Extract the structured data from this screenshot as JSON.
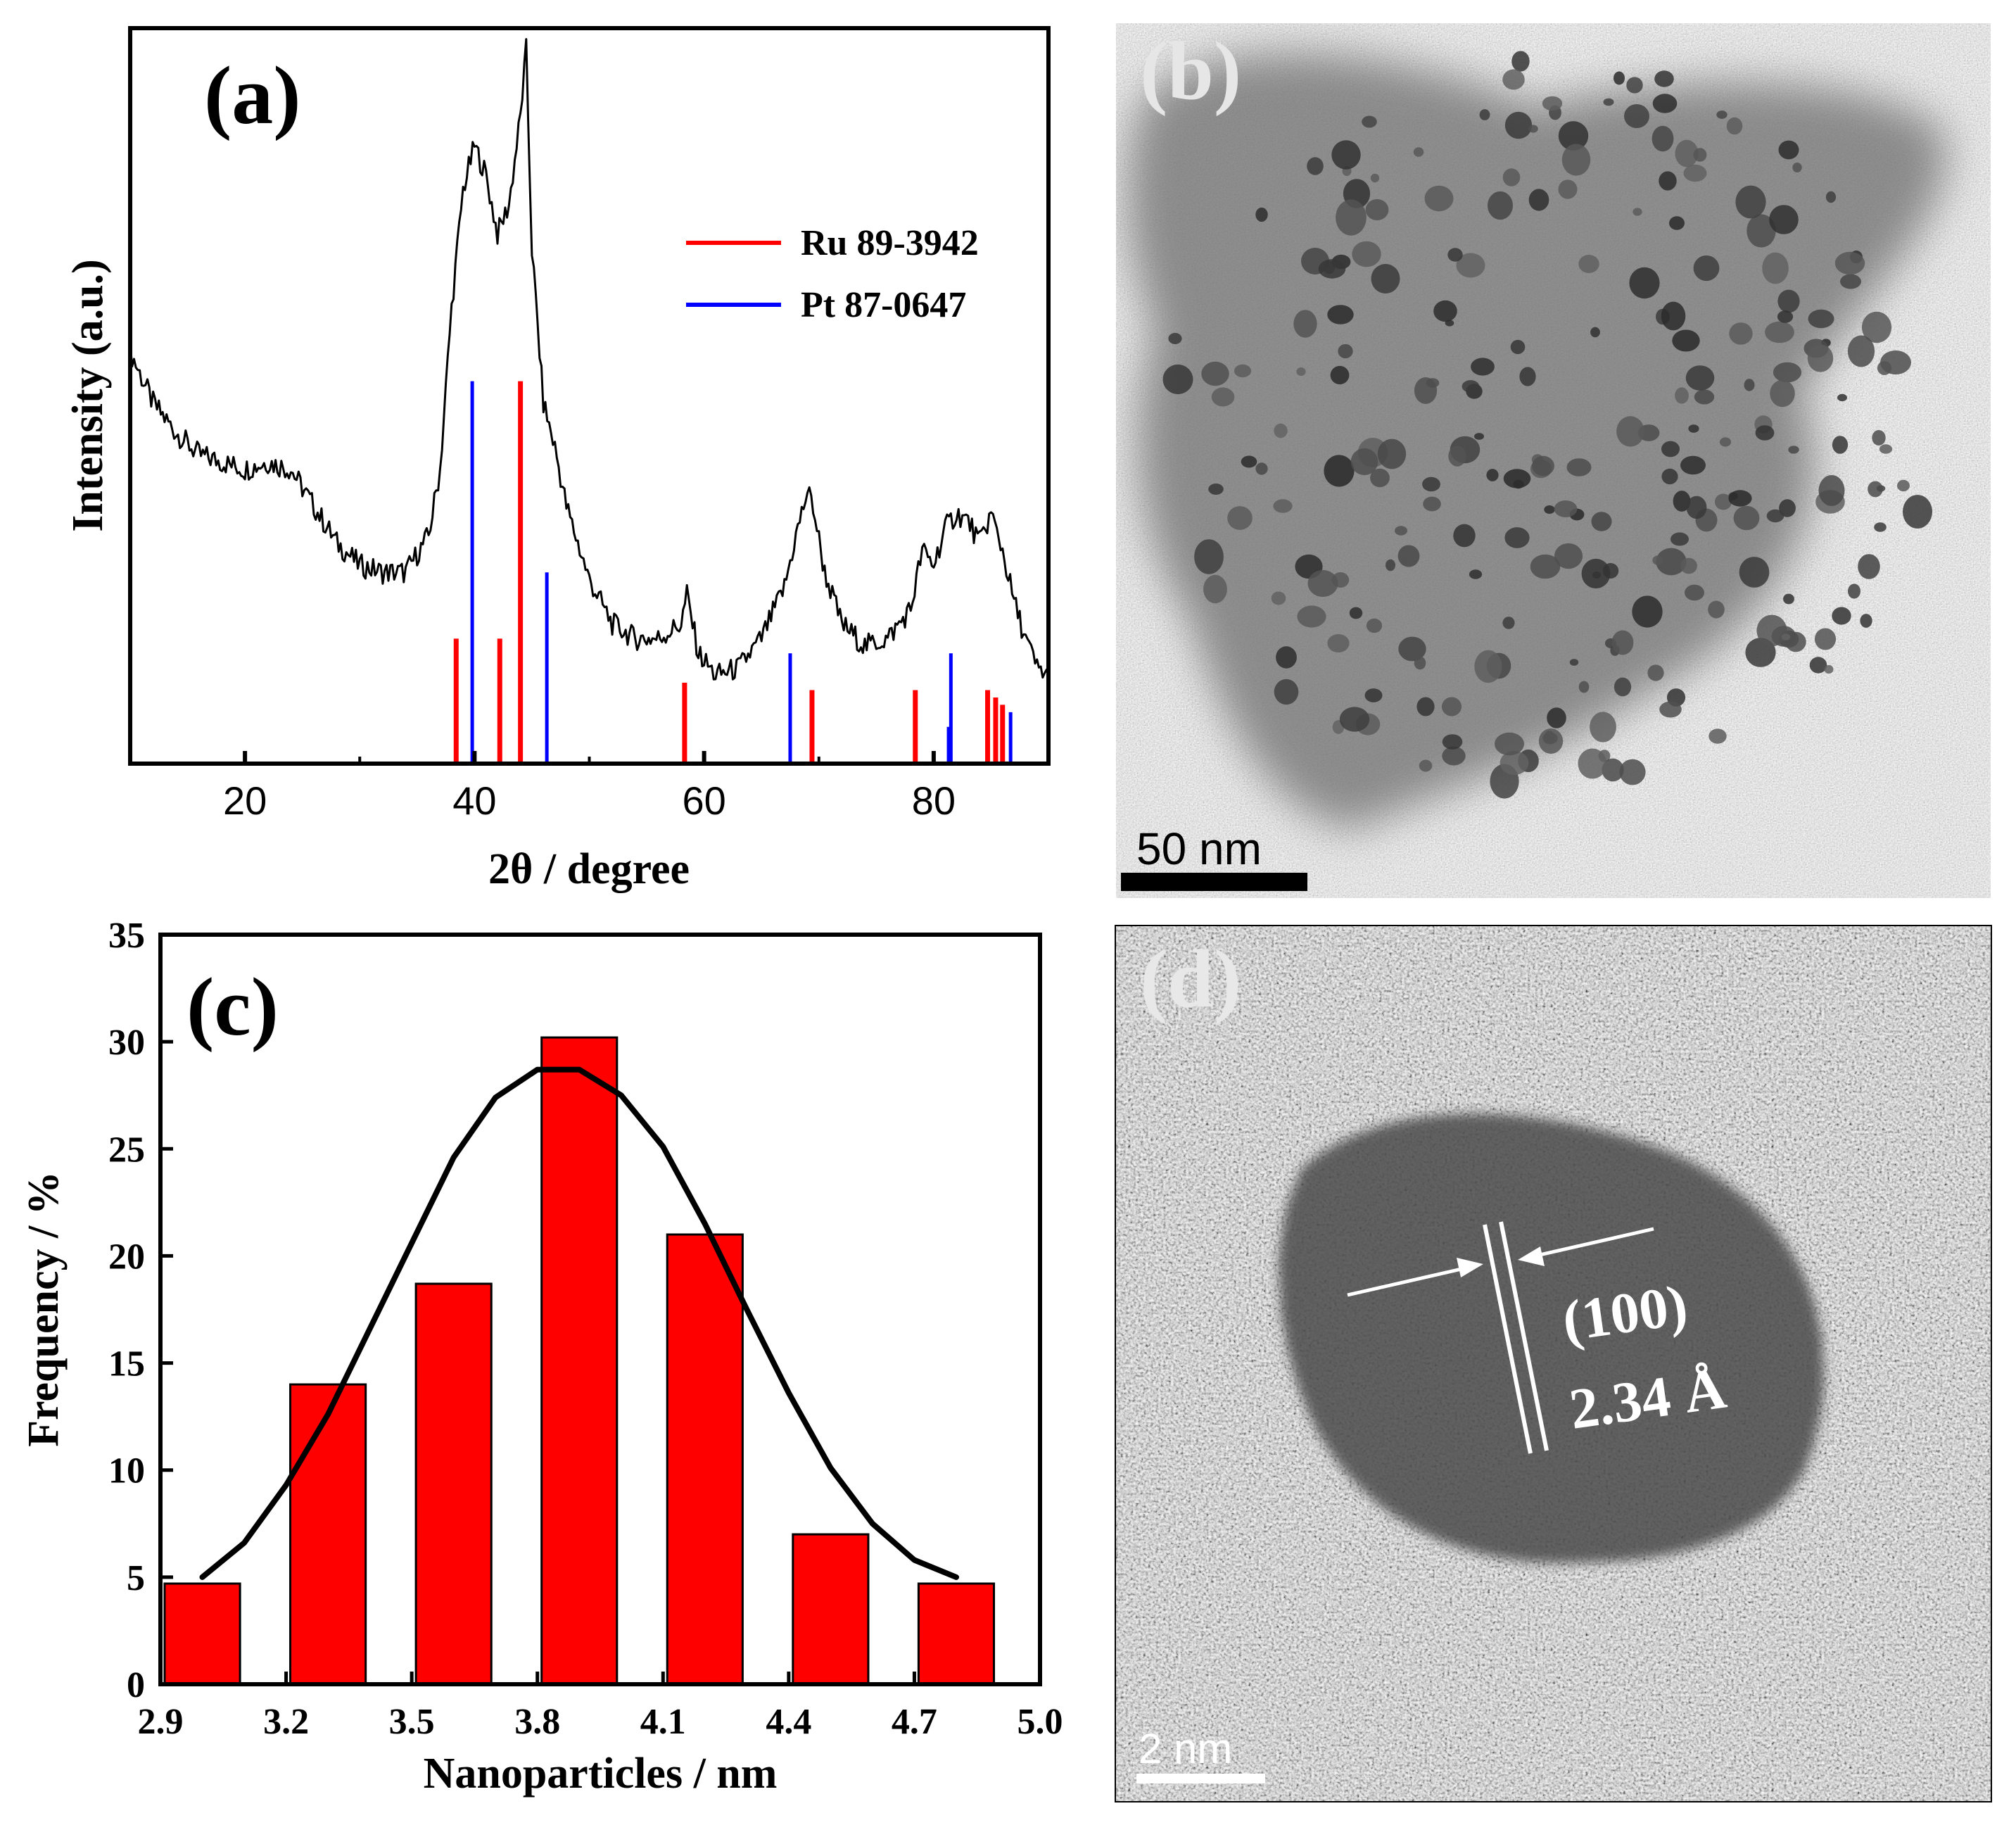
{
  "colors": {
    "ru": "#ff0000",
    "pt": "#0000ff",
    "bar": "#ff0000",
    "curve": "#000000",
    "pattern": "#000000"
  },
  "chart_data": [
    {
      "panel": "(a)",
      "type": "line",
      "title": "",
      "xlabel": "2θ / degree",
      "ylabel": "Intensity (a.u.)",
      "xlim": [
        10,
        90
      ],
      "ylim": [
        0,
        100
      ],
      "xticks": [
        20,
        40,
        60,
        80
      ],
      "series": [
        {
          "name": "XRD pattern",
          "x": [
            10,
            12,
            14,
            16,
            18,
            20,
            22,
            24,
            26,
            28,
            30,
            32,
            34,
            36,
            37,
            38,
            39,
            40,
            41,
            42,
            43,
            44,
            44.5,
            45,
            46,
            47,
            48,
            50,
            52,
            54,
            56,
            58,
            58.5,
            59.5,
            61,
            63,
            65,
            67,
            68,
            69,
            69.5,
            70.5,
            72,
            74,
            76,
            78,
            79,
            80,
            81,
            82,
            83,
            84,
            85,
            86,
            87,
            88,
            89,
            90
          ],
          "y": [
            56,
            49,
            45,
            42,
            41,
            40,
            41,
            40,
            35,
            30,
            27,
            26,
            26,
            31,
            40,
            62,
            78,
            84,
            80,
            72,
            76,
            88,
            97,
            70,
            49,
            43,
            35,
            25,
            19,
            17,
            17,
            19,
            23,
            15,
            12,
            13,
            17,
            24,
            31,
            37,
            35,
            26,
            19,
            16,
            17,
            21,
            29,
            27,
            32,
            34,
            33,
            30,
            34,
            29,
            22,
            17,
            13,
            12
          ]
        }
      ],
      "references": [
        {
          "name": "Ru 89-3942",
          "positions": [
            38.4,
            42.2,
            44.0,
            58.3,
            69.4,
            78.4,
            84.7,
            85.4,
            86.0
          ],
          "intensities": [
            17,
            17,
            52,
            11,
            10,
            10,
            10,
            9,
            8
          ]
        },
        {
          "name": "Pt 87-0647",
          "positions": [
            39.8,
            46.3,
            67.5,
            81.3,
            81.5,
            86.7
          ],
          "intensities": [
            52,
            26,
            15,
            5,
            15,
            7
          ]
        }
      ],
      "legend": [
        "Ru 89-3942",
        "Pt 87-0647"
      ],
      "legend_position": "top-right"
    },
    {
      "panel": "(c)",
      "type": "bar",
      "title": "",
      "xlabel": "Nanoparticles / nm",
      "ylabel": "Frequency / %",
      "xlim": [
        2.9,
        5.0
      ],
      "ylim": [
        0,
        35
      ],
      "xticks": [
        "2.9",
        "3.2",
        "3.5",
        "3.8",
        "4.1",
        "4.4",
        "4.7",
        "5.0"
      ],
      "yticks": [
        "0",
        "5",
        "10",
        "15",
        "20",
        "25",
        "30",
        "35"
      ],
      "categories": [
        "3.0",
        "3.3",
        "3.6",
        "3.9",
        "4.2",
        "4.5",
        "4.8"
      ],
      "values": [
        4.7,
        14.0,
        18.7,
        30.2,
        21.0,
        7.0,
        4.7
      ],
      "bar_width": 0.18,
      "fit": {
        "type": "gaussian",
        "x": [
          3.0,
          3.1,
          3.2,
          3.3,
          3.4,
          3.5,
          3.6,
          3.7,
          3.8,
          3.9,
          4.0,
          4.1,
          4.2,
          4.3,
          4.4,
          4.5,
          4.6,
          4.7,
          4.8
        ],
        "y": [
          5.0,
          6.6,
          9.3,
          12.6,
          16.6,
          20.6,
          24.6,
          27.4,
          28.7,
          28.7,
          27.5,
          25.1,
          21.5,
          17.5,
          13.6,
          10.1,
          7.5,
          5.8,
          5.0
        ]
      }
    }
  ],
  "panels": {
    "a": {
      "label": "(a)"
    },
    "b": {
      "label": "(b)",
      "scale_bar": "50 nm"
    },
    "c": {
      "label": "(c)"
    },
    "d": {
      "label": "(d)",
      "scale_bar": "2 nm",
      "plane": "(100)",
      "spacing": "2.34 Å"
    }
  }
}
